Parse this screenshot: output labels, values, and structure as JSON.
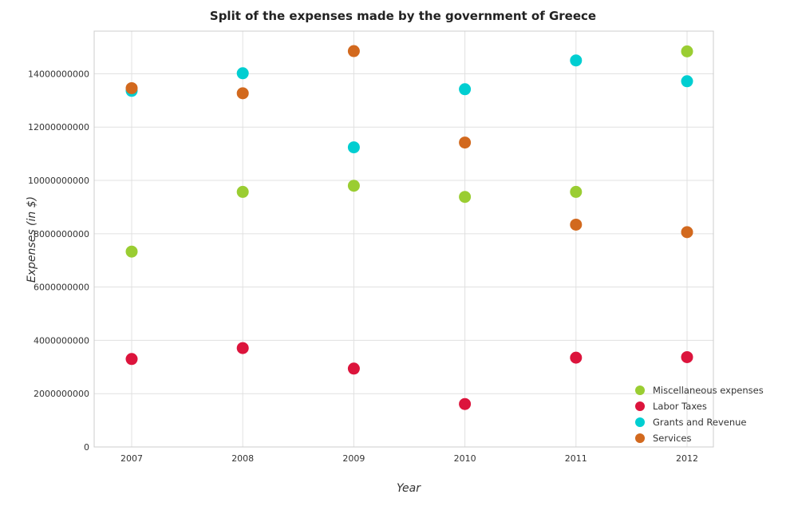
{
  "chart_data": {
    "type": "scatter",
    "title": "Split of the expenses made by the government of Greece",
    "xlabel": "Year",
    "ylabel": "Expenses (in $)",
    "categories": [
      "2007",
      "2008",
      "2009",
      "2010",
      "2011",
      "2012"
    ],
    "ylim": [
      0,
      15600000000
    ],
    "yticks": [
      0,
      2000000000,
      4000000000,
      6000000000,
      8000000000,
      10000000000,
      12000000000,
      14000000000
    ],
    "ytick_labels": [
      "0",
      "2000000000",
      "4000000000",
      "6000000000",
      "8000000000",
      "10000000000",
      "12000000000",
      "14000000000"
    ],
    "grid": true,
    "legend_position": "bottom-right",
    "series": [
      {
        "name": "Miscellaneous expenses",
        "color": "#9acd32",
        "values": [
          7330000000,
          9570000000,
          9800000000,
          9380000000,
          9570000000,
          14840000000
        ]
      },
      {
        "name": "Labor Taxes",
        "color": "#dc143c",
        "values": [
          3300000000,
          3710000000,
          2940000000,
          1610000000,
          3350000000,
          3370000000
        ]
      },
      {
        "name": "Grants and Revenue",
        "color": "#00ced1",
        "values": [
          13360000000,
          14020000000,
          11240000000,
          13420000000,
          14500000000,
          13720000000
        ]
      },
      {
        "name": "Services",
        "color": "#d2691e",
        "values": [
          13460000000,
          13270000000,
          14850000000,
          11420000000,
          8340000000,
          8060000000
        ]
      }
    ]
  }
}
